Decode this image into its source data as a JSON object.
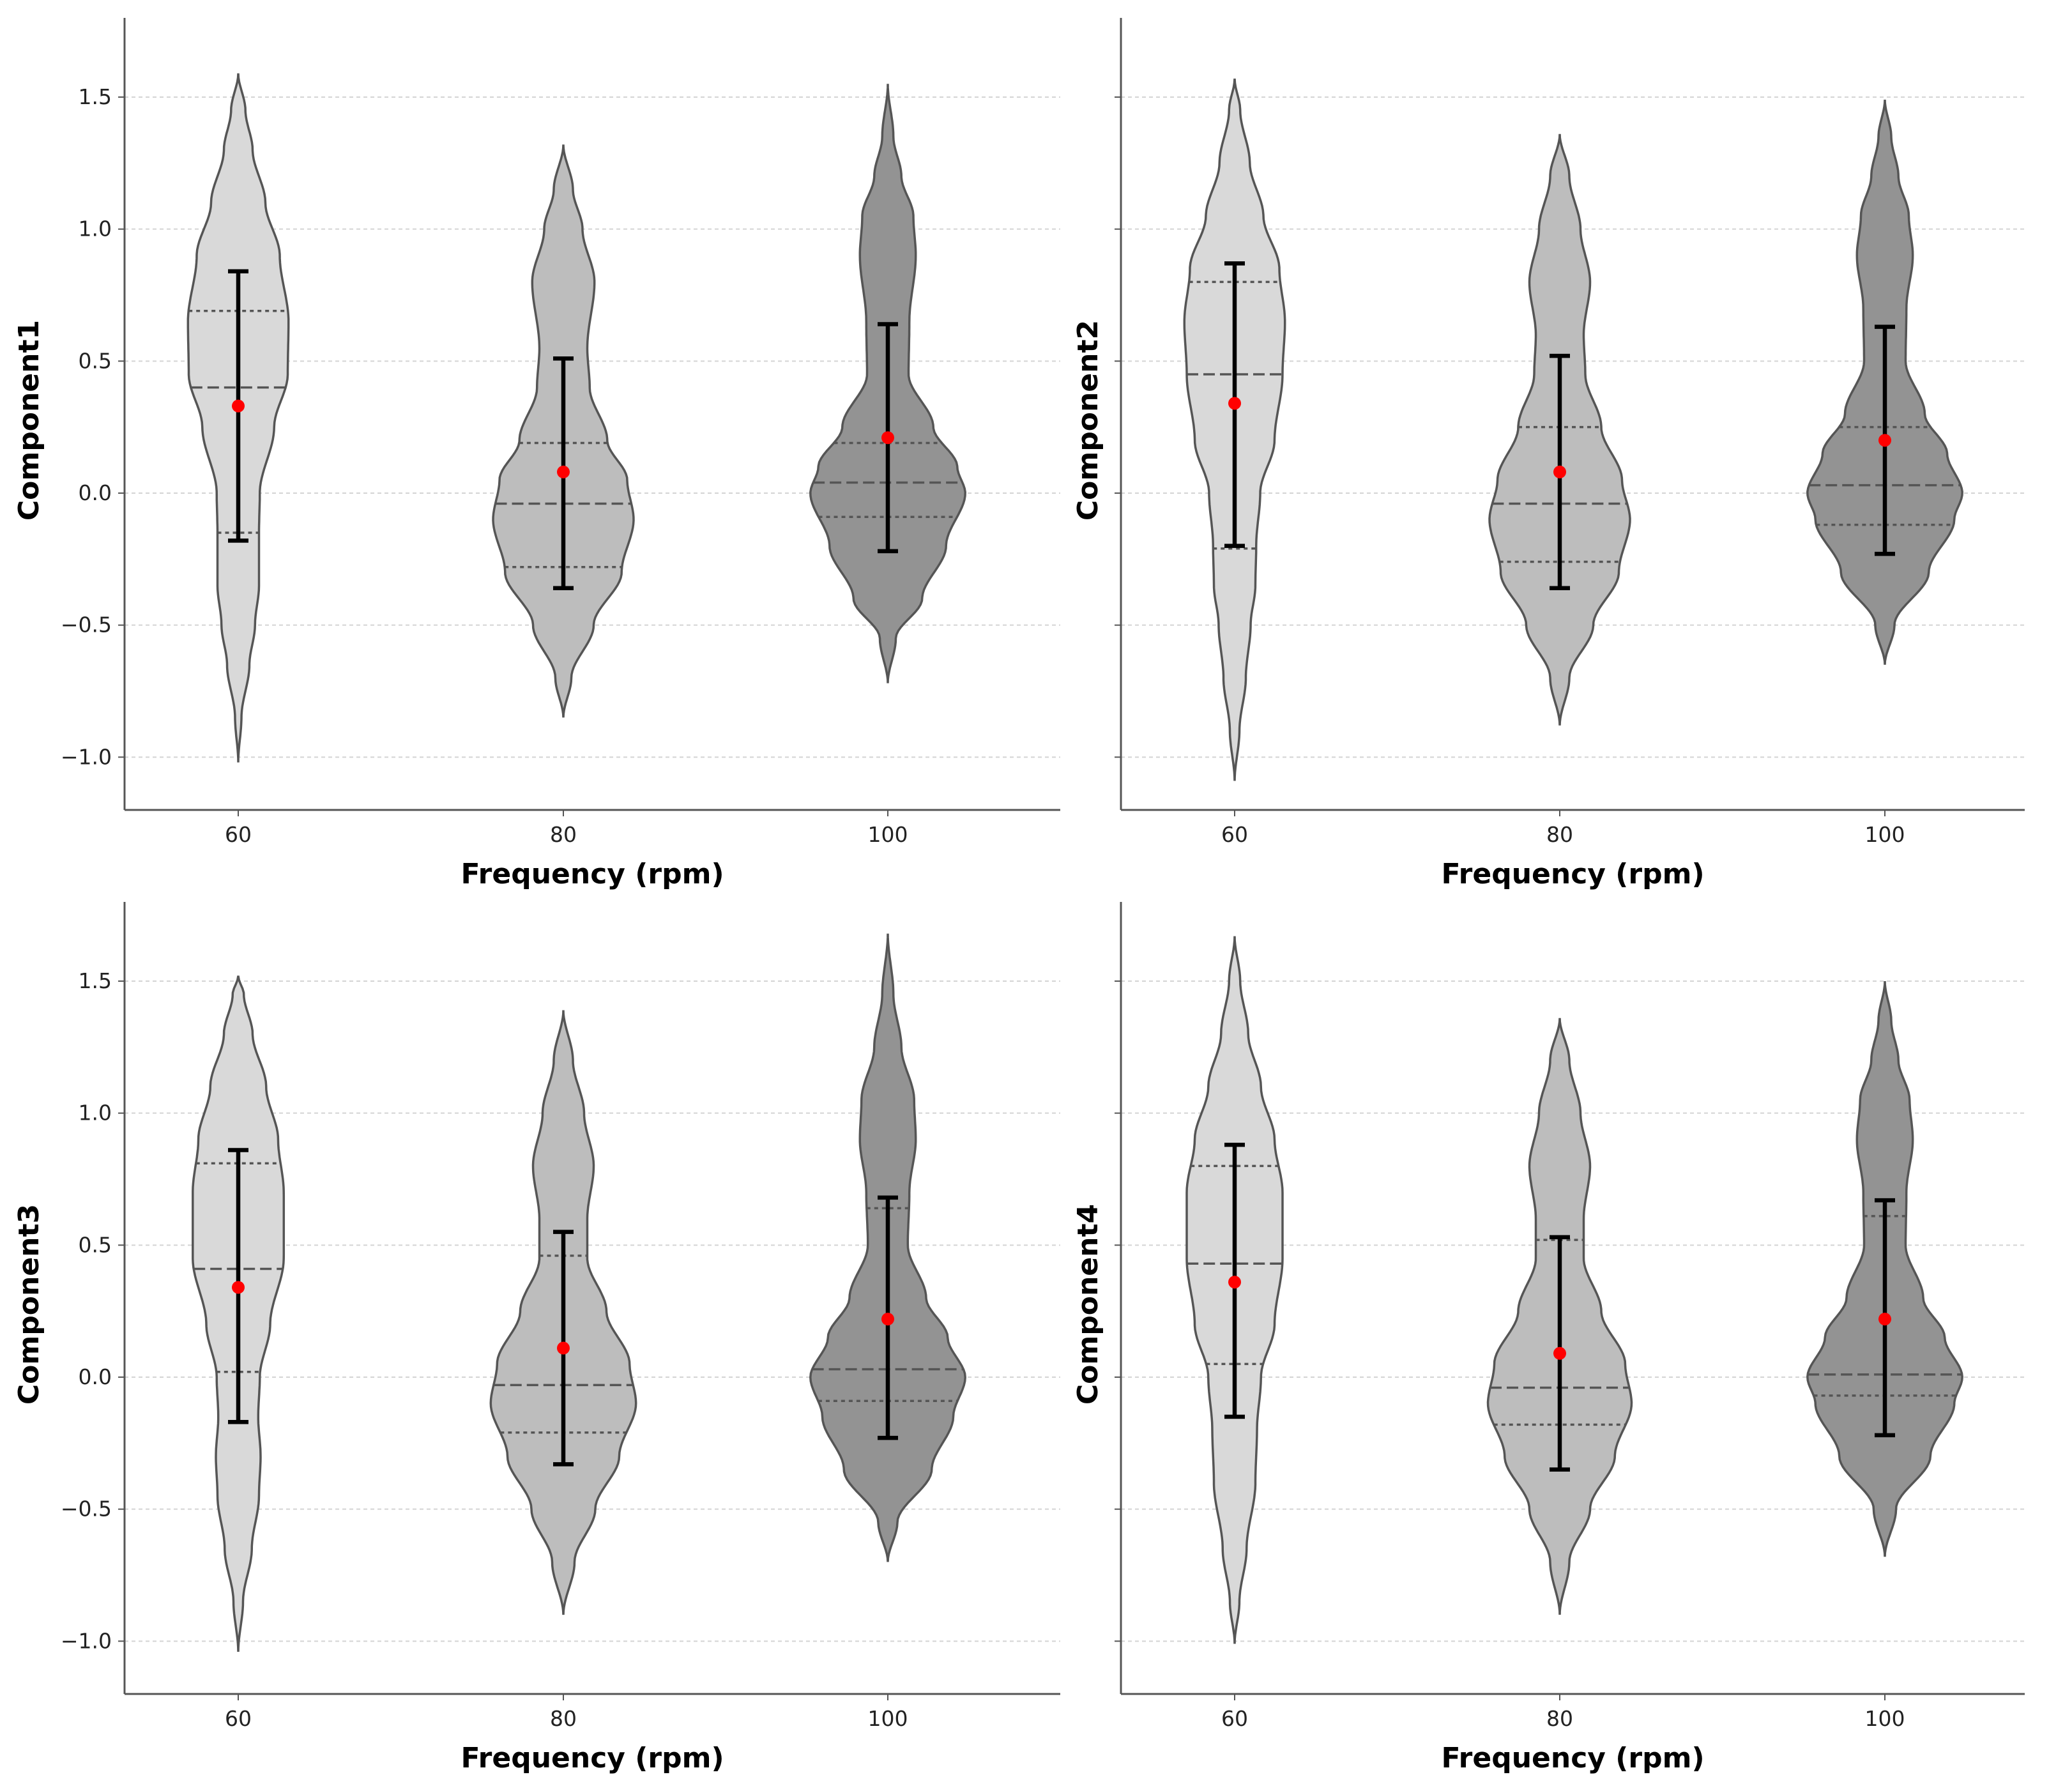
{
  "figure": {
    "colors": {
      "violins": [
        "#d9d9d9",
        "#bdbdbd",
        "#939393"
      ],
      "mean_marker": "#ff0000",
      "error_bar": "#000000"
    }
  },
  "chart_data": [
    {
      "type": "violin",
      "ylabel": "Component1",
      "xlabel": "Frequency (rpm)",
      "categories": [
        "60",
        "80",
        "100"
      ],
      "ylim": [
        -1.2,
        1.8
      ],
      "yticks": [
        -1.0,
        -0.5,
        0.0,
        0.5,
        1.0,
        1.5
      ],
      "ytick_labels": [
        "−1.0",
        "−0.5",
        "0.0",
        "0.5",
        "1.0",
        "1.5"
      ],
      "show_ytick_labels": true,
      "grid": "horizontal dotted",
      "violins": [
        {
          "category": "60",
          "min": -1.02,
          "max": 1.59,
          "q1": -0.15,
          "median": 0.4,
          "q3": 0.69,
          "mean": 0.33,
          "err_low": -0.18,
          "err_high": 0.84,
          "profile": [
            [
              -1.02,
              0
            ],
            [
              -0.85,
              0.04
            ],
            [
              -0.65,
              0.14
            ],
            [
              -0.5,
              0.21
            ],
            [
              -0.35,
              0.26
            ],
            [
              -0.15,
              0.26
            ],
            [
              0.0,
              0.27
            ],
            [
              0.25,
              0.45
            ],
            [
              0.45,
              0.62
            ],
            [
              0.65,
              0.63
            ],
            [
              0.9,
              0.52
            ],
            [
              1.1,
              0.34
            ],
            [
              1.3,
              0.18
            ],
            [
              1.45,
              0.09
            ],
            [
              1.59,
              0
            ]
          ]
        },
        {
          "category": "80",
          "min": -0.85,
          "max": 1.32,
          "q1": -0.28,
          "median": -0.04,
          "q3": 0.19,
          "mean": 0.08,
          "err_low": -0.36,
          "err_high": 0.51,
          "profile": [
            [
              -0.85,
              0
            ],
            [
              -0.7,
              0.1
            ],
            [
              -0.5,
              0.38
            ],
            [
              -0.3,
              0.73
            ],
            [
              -0.1,
              0.88
            ],
            [
              0.05,
              0.8
            ],
            [
              0.2,
              0.55
            ],
            [
              0.4,
              0.33
            ],
            [
              0.55,
              0.3
            ],
            [
              0.8,
              0.39
            ],
            [
              1.0,
              0.24
            ],
            [
              1.15,
              0.12
            ],
            [
              1.32,
              0
            ]
          ]
        },
        {
          "category": "100",
          "min": -0.72,
          "max": 1.55,
          "q1": -0.09,
          "median": 0.04,
          "q3": 0.19,
          "mean": 0.21,
          "err_low": -0.22,
          "err_high": 0.64,
          "profile": [
            [
              -0.72,
              0
            ],
            [
              -0.55,
              0.1
            ],
            [
              -0.4,
              0.43
            ],
            [
              -0.2,
              0.73
            ],
            [
              0.0,
              0.97
            ],
            [
              0.1,
              0.87
            ],
            [
              0.25,
              0.57
            ],
            [
              0.45,
              0.26
            ],
            [
              0.65,
              0.27
            ],
            [
              0.9,
              0.35
            ],
            [
              1.05,
              0.32
            ],
            [
              1.2,
              0.17
            ],
            [
              1.35,
              0.07
            ],
            [
              1.55,
              0
            ]
          ]
        }
      ]
    },
    {
      "type": "violin",
      "ylabel": "Component2",
      "xlabel": "Frequency (rpm)",
      "categories": [
        "60",
        "80",
        "100"
      ],
      "ylim": [
        -1.2,
        1.8
      ],
      "yticks": [
        -1.0,
        -0.5,
        0.0,
        0.5,
        1.0,
        1.5
      ],
      "ytick_labels": [
        "−1.0",
        "−0.5",
        "0.0",
        "0.5",
        "1.0",
        "1.5"
      ],
      "show_ytick_labels": false,
      "grid": "horizontal dotted",
      "violins": [
        {
          "category": "60",
          "min": -1.09,
          "max": 1.57,
          "q1": -0.21,
          "median": 0.45,
          "q3": 0.8,
          "mean": 0.34,
          "err_low": -0.2,
          "err_high": 0.87,
          "profile": [
            [
              -1.09,
              0
            ],
            [
              -0.9,
              0.06
            ],
            [
              -0.7,
              0.14
            ],
            [
              -0.5,
              0.2
            ],
            [
              -0.35,
              0.26
            ],
            [
              -0.2,
              0.27
            ],
            [
              0.0,
              0.32
            ],
            [
              0.2,
              0.5
            ],
            [
              0.45,
              0.6
            ],
            [
              0.65,
              0.63
            ],
            [
              0.85,
              0.56
            ],
            [
              1.05,
              0.36
            ],
            [
              1.25,
              0.19
            ],
            [
              1.45,
              0.07
            ],
            [
              1.57,
              0
            ]
          ]
        },
        {
          "category": "80",
          "min": -0.88,
          "max": 1.36,
          "q1": -0.26,
          "median": -0.04,
          "q3": 0.25,
          "mean": 0.08,
          "err_low": -0.36,
          "err_high": 0.52,
          "profile": [
            [
              -0.88,
              0
            ],
            [
              -0.7,
              0.12
            ],
            [
              -0.5,
              0.42
            ],
            [
              -0.3,
              0.74
            ],
            [
              -0.1,
              0.88
            ],
            [
              0.05,
              0.78
            ],
            [
              0.25,
              0.52
            ],
            [
              0.45,
              0.32
            ],
            [
              0.6,
              0.3
            ],
            [
              0.8,
              0.38
            ],
            [
              1.0,
              0.26
            ],
            [
              1.2,
              0.12
            ],
            [
              1.36,
              0
            ]
          ]
        },
        {
          "category": "100",
          "min": -0.65,
          "max": 1.49,
          "q1": -0.12,
          "median": 0.03,
          "q3": 0.25,
          "mean": 0.2,
          "err_low": -0.23,
          "err_high": 0.63,
          "profile": [
            [
              -0.65,
              0
            ],
            [
              -0.5,
              0.12
            ],
            [
              -0.3,
              0.55
            ],
            [
              -0.1,
              0.87
            ],
            [
              0.0,
              0.97
            ],
            [
              0.15,
              0.78
            ],
            [
              0.3,
              0.5
            ],
            [
              0.5,
              0.26
            ],
            [
              0.7,
              0.27
            ],
            [
              0.9,
              0.35
            ],
            [
              1.05,
              0.3
            ],
            [
              1.2,
              0.17
            ],
            [
              1.35,
              0.08
            ],
            [
              1.49,
              0
            ]
          ]
        }
      ]
    },
    {
      "type": "violin",
      "ylabel": "Component3",
      "xlabel": "Frequency (rpm)",
      "categories": [
        "60",
        "80",
        "100"
      ],
      "ylim": [
        -1.2,
        1.8
      ],
      "yticks": [
        -1.0,
        -0.5,
        0.0,
        0.5,
        1.0,
        1.5
      ],
      "ytick_labels": [
        "−1.0",
        "−0.5",
        "0.0",
        "0.5",
        "1.0",
        "1.5"
      ],
      "show_ytick_labels": true,
      "grid": "horizontal dotted",
      "violins": [
        {
          "category": "60",
          "min": -1.04,
          "max": 1.52,
          "q1": 0.02,
          "median": 0.41,
          "q3": 0.81,
          "mean": 0.34,
          "err_low": -0.17,
          "err_high": 0.86,
          "profile": [
            [
              -1.04,
              0
            ],
            [
              -0.85,
              0.06
            ],
            [
              -0.65,
              0.17
            ],
            [
              -0.45,
              0.26
            ],
            [
              -0.3,
              0.28
            ],
            [
              -0.15,
              0.25
            ],
            [
              0.0,
              0.27
            ],
            [
              0.2,
              0.4
            ],
            [
              0.45,
              0.57
            ],
            [
              0.7,
              0.57
            ],
            [
              0.9,
              0.5
            ],
            [
              1.1,
              0.35
            ],
            [
              1.3,
              0.18
            ],
            [
              1.45,
              0.07
            ],
            [
              1.52,
              0
            ]
          ]
        },
        {
          "category": "80",
          "min": -0.9,
          "max": 1.39,
          "q1": -0.21,
          "median": -0.03,
          "q3": 0.46,
          "mean": 0.11,
          "err_low": -0.33,
          "err_high": 0.55,
          "profile": [
            [
              -0.9,
              0
            ],
            [
              -0.7,
              0.14
            ],
            [
              -0.5,
              0.4
            ],
            [
              -0.3,
              0.7
            ],
            [
              -0.1,
              0.91
            ],
            [
              0.05,
              0.83
            ],
            [
              0.25,
              0.54
            ],
            [
              0.45,
              0.3
            ],
            [
              0.6,
              0.3
            ],
            [
              0.8,
              0.38
            ],
            [
              1.0,
              0.26
            ],
            [
              1.2,
              0.12
            ],
            [
              1.39,
              0
            ]
          ]
        },
        {
          "category": "100",
          "min": -0.7,
          "max": 1.68,
          "q1": -0.09,
          "median": 0.03,
          "q3": 0.64,
          "mean": 0.22,
          "err_low": -0.23,
          "err_high": 0.68,
          "profile": [
            [
              -0.7,
              0
            ],
            [
              -0.55,
              0.12
            ],
            [
              -0.35,
              0.55
            ],
            [
              -0.15,
              0.82
            ],
            [
              0.0,
              0.97
            ],
            [
              0.15,
              0.75
            ],
            [
              0.3,
              0.48
            ],
            [
              0.5,
              0.25
            ],
            [
              0.7,
              0.27
            ],
            [
              0.9,
              0.35
            ],
            [
              1.05,
              0.33
            ],
            [
              1.25,
              0.17
            ],
            [
              1.45,
              0.07
            ],
            [
              1.68,
              0
            ]
          ]
        }
      ]
    },
    {
      "type": "violin",
      "ylabel": "Component4",
      "xlabel": "Frequency (rpm)",
      "categories": [
        "60",
        "80",
        "100"
      ],
      "ylim": [
        -1.2,
        1.8
      ],
      "yticks": [
        -1.0,
        -0.5,
        0.0,
        0.5,
        1.0,
        1.5
      ],
      "ytick_labels": [
        "−1.0",
        "−0.5",
        "0.0",
        "0.5",
        "1.0",
        "1.5"
      ],
      "show_ytick_labels": false,
      "grid": "horizontal dotted",
      "violins": [
        {
          "category": "60",
          "min": -1.01,
          "max": 1.67,
          "q1": 0.05,
          "median": 0.43,
          "q3": 0.8,
          "mean": 0.36,
          "err_low": -0.15,
          "err_high": 0.88,
          "profile": [
            [
              -1.01,
              0
            ],
            [
              -0.85,
              0.06
            ],
            [
              -0.65,
              0.15
            ],
            [
              -0.4,
              0.26
            ],
            [
              -0.2,
              0.28
            ],
            [
              0.0,
              0.33
            ],
            [
              0.2,
              0.5
            ],
            [
              0.45,
              0.6
            ],
            [
              0.7,
              0.6
            ],
            [
              0.9,
              0.5
            ],
            [
              1.1,
              0.33
            ],
            [
              1.3,
              0.17
            ],
            [
              1.5,
              0.07
            ],
            [
              1.67,
              0
            ]
          ]
        },
        {
          "category": "80",
          "min": -0.9,
          "max": 1.36,
          "q1": -0.18,
          "median": -0.04,
          "q3": 0.52,
          "mean": 0.09,
          "err_low": -0.35,
          "err_high": 0.53,
          "profile": [
            [
              -0.9,
              0
            ],
            [
              -0.7,
              0.12
            ],
            [
              -0.5,
              0.38
            ],
            [
              -0.3,
              0.69
            ],
            [
              -0.1,
              0.9
            ],
            [
              0.05,
              0.82
            ],
            [
              0.25,
              0.52
            ],
            [
              0.45,
              0.3
            ],
            [
              0.6,
              0.3
            ],
            [
              0.8,
              0.38
            ],
            [
              1.0,
              0.26
            ],
            [
              1.2,
              0.12
            ],
            [
              1.36,
              0
            ]
          ]
        },
        {
          "category": "100",
          "min": -0.68,
          "max": 1.5,
          "q1": -0.07,
          "median": 0.01,
          "q3": 0.61,
          "mean": 0.22,
          "err_low": -0.22,
          "err_high": 0.67,
          "profile": [
            [
              -0.68,
              0
            ],
            [
              -0.5,
              0.14
            ],
            [
              -0.3,
              0.57
            ],
            [
              -0.1,
              0.87
            ],
            [
              0.0,
              0.97
            ],
            [
              0.15,
              0.75
            ],
            [
              0.3,
              0.48
            ],
            [
              0.5,
              0.26
            ],
            [
              0.7,
              0.27
            ],
            [
              0.9,
              0.35
            ],
            [
              1.05,
              0.31
            ],
            [
              1.2,
              0.17
            ],
            [
              1.35,
              0.08
            ],
            [
              1.5,
              0
            ]
          ]
        }
      ]
    }
  ]
}
